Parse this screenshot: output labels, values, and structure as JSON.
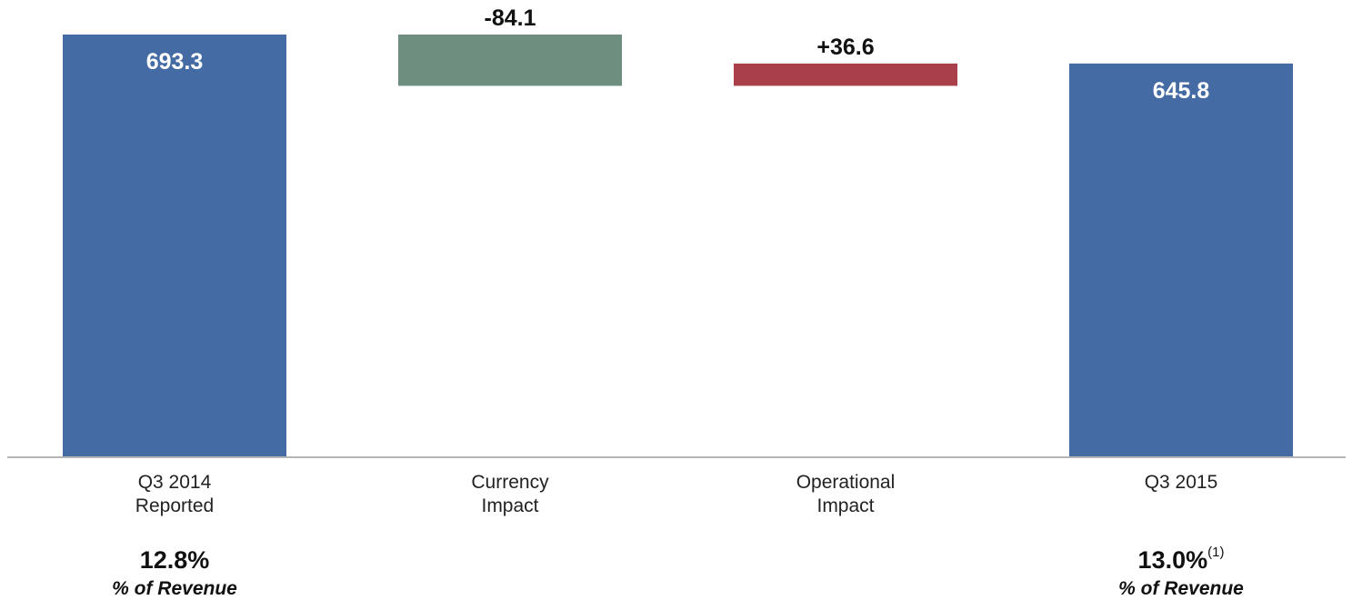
{
  "chart_data": {
    "type": "bar",
    "subtype": "waterfall",
    "categories": [
      "Q3 2014\nReported",
      "Currency\nImpact",
      "Operational\nImpact",
      "Q3 2015"
    ],
    "values": [
      693.3,
      -84.1,
      36.6,
      645.8
    ],
    "value_labels": [
      "693.3",
      "-84.1",
      "+36.6",
      "645.8"
    ],
    "bar_kinds": [
      "total",
      "delta",
      "delta",
      "total"
    ],
    "colors": [
      "#446ba3",
      "#6e8e80",
      "#a93f4a",
      "#446ba3"
    ],
    "grid": false,
    "legend": "none",
    "footnotes": [
      {
        "value": "12.8%",
        "superscript": "",
        "caption": "% of Revenue",
        "category_index": 0
      },
      {
        "value": "13.0%",
        "superscript": "(1)",
        "caption": "% of Revenue",
        "category_index": 3
      }
    ]
  }
}
